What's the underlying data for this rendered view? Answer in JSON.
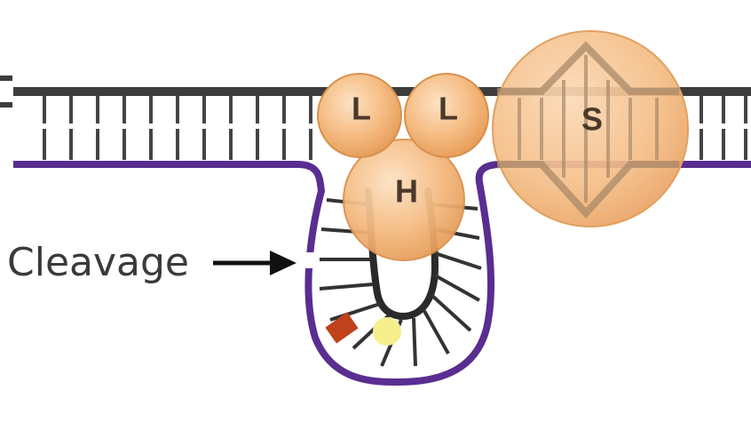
{
  "labels": {
    "cleavage": "Cleavage",
    "subunit_l_left": "L",
    "subunit_l_right": "L",
    "subunit_h": "H",
    "subunit_s": "S"
  },
  "colors": {
    "top_strand": "#3c3c3c",
    "bottom_strand": "#5a2d91",
    "rungs": "#444444",
    "inner_hairpin": "#2a2a2a",
    "protein_fill": "#f2b478",
    "protein_stroke": "#d9904c",
    "red_mark": "#c0421c",
    "yellow_mark": "#f6ef8c"
  }
}
